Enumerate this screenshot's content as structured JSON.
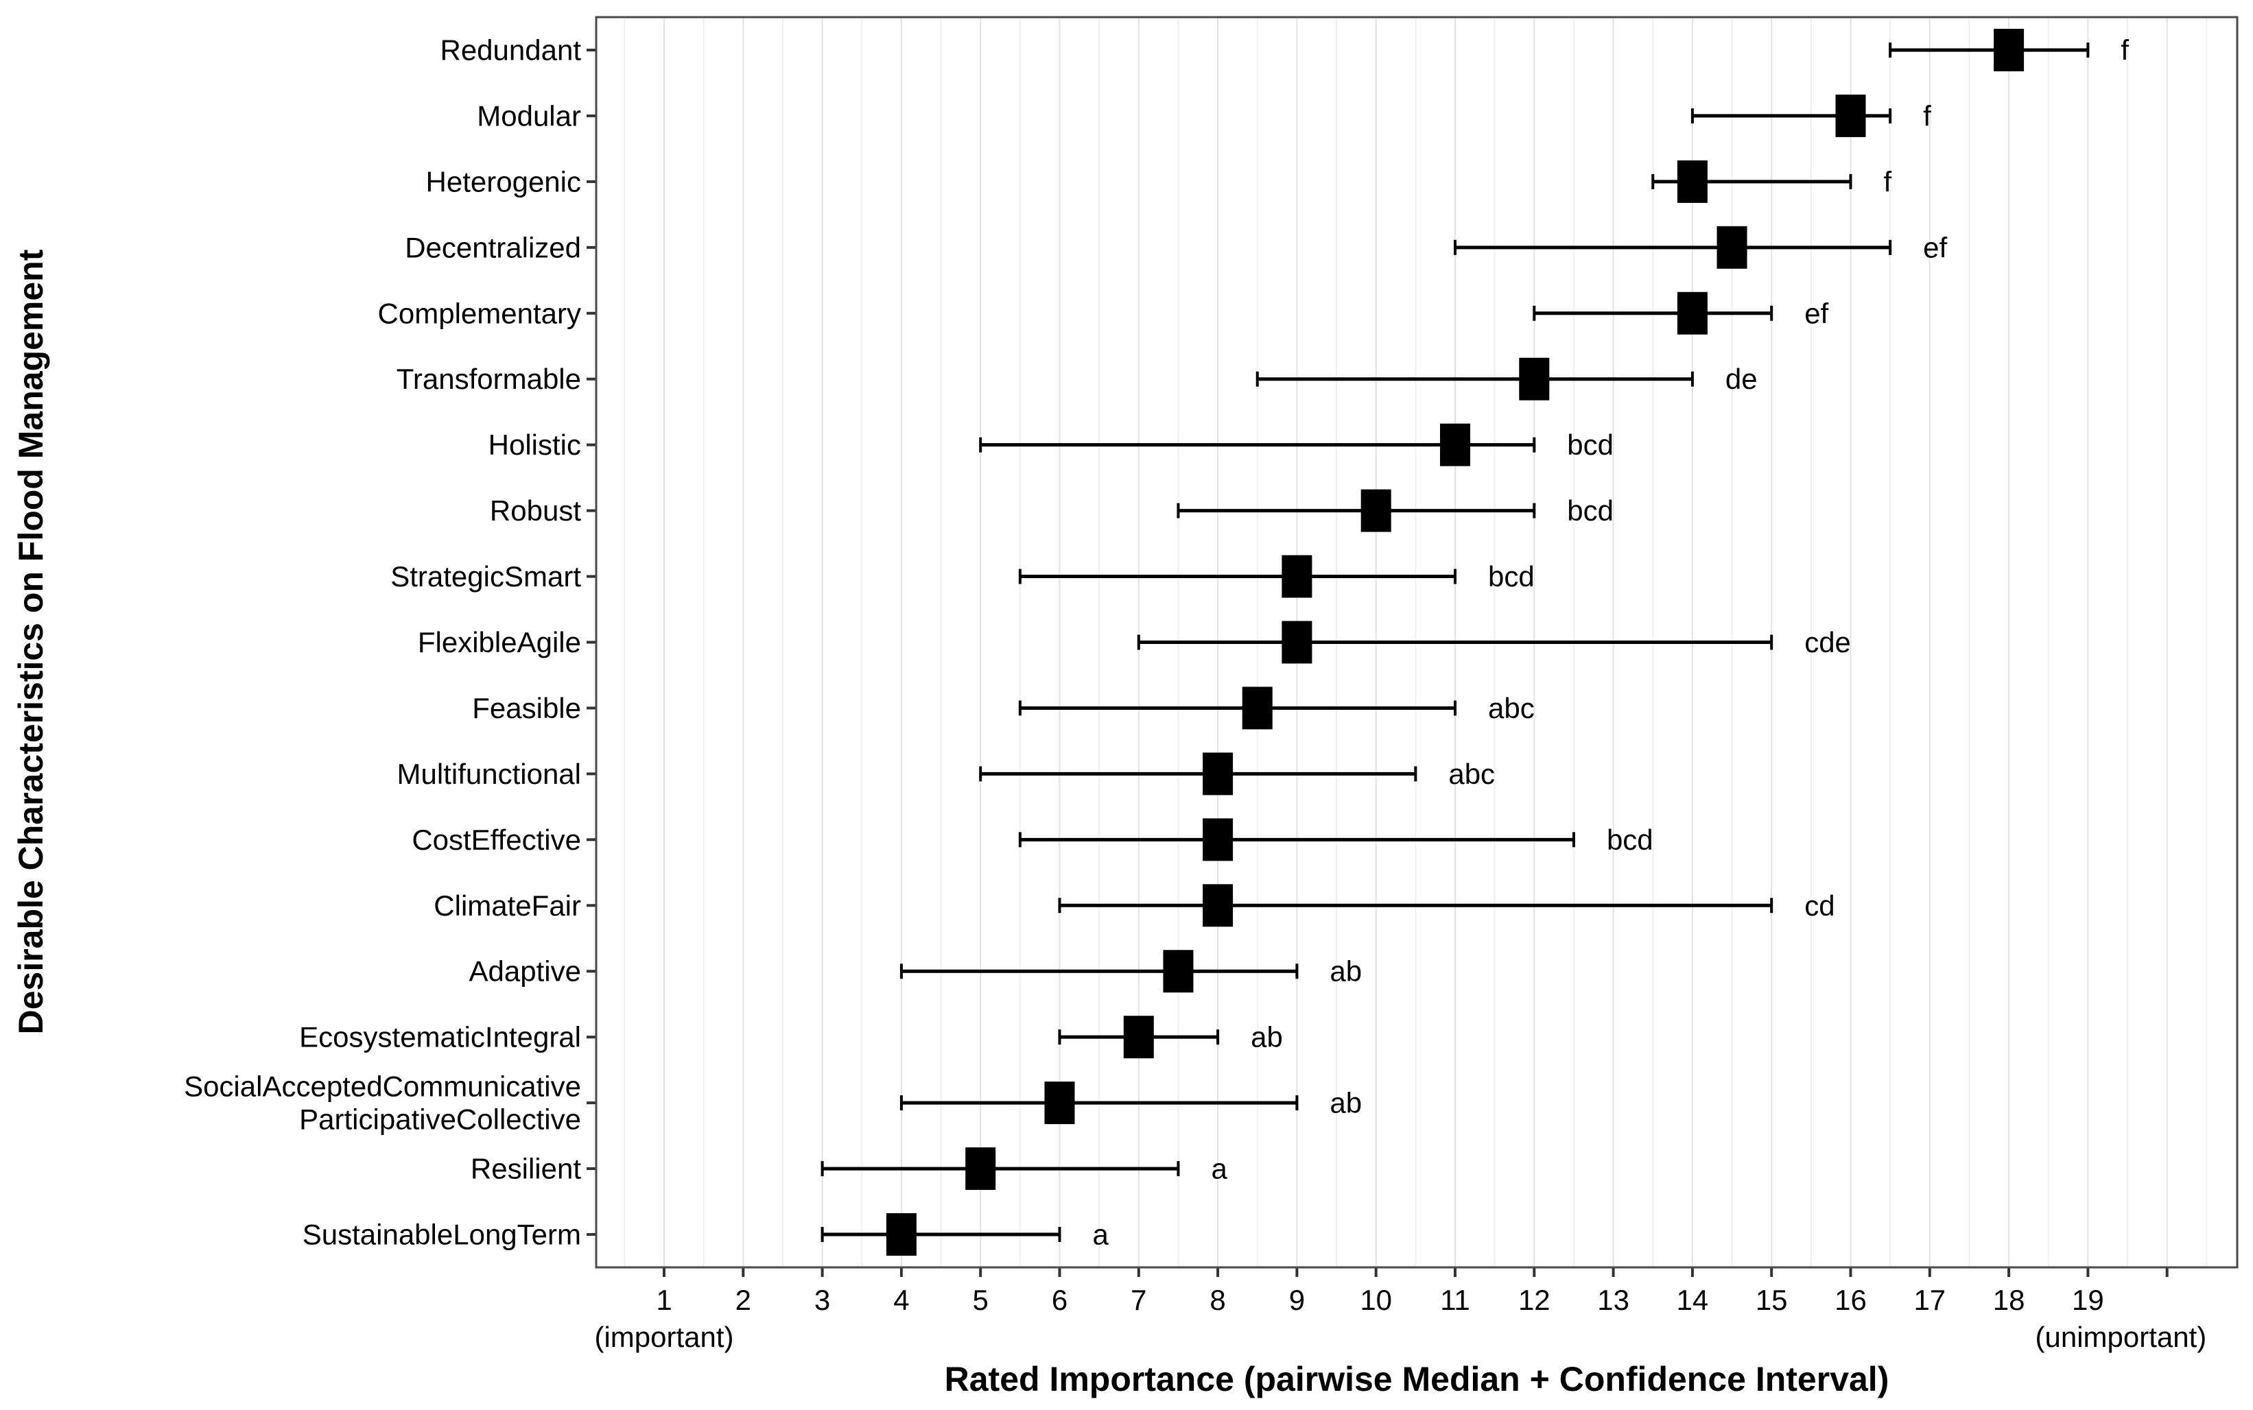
{
  "chart_data": {
    "type": "scatter",
    "subtype": "dot-plot-with-error-bars",
    "marker": "square",
    "title": "",
    "xlabel": "Rated Importance (pairwise Median + Confidence Interval)",
    "ylabel": "Desirable Characteristics on Flood Management",
    "x_axis": {
      "ticks": [
        1,
        2,
        3,
        4,
        5,
        6,
        7,
        8,
        9,
        10,
        11,
        12,
        13,
        14,
        15,
        16,
        17,
        18,
        19
      ],
      "extra_unlabeled_tick": 20,
      "low_end_note": "(important)",
      "high_end_note": "(unimportant)",
      "xlim": [
        0.1,
        20.9
      ]
    },
    "grid": {
      "major": "on",
      "minor": "on",
      "major_color": "#e2e2e2",
      "minor_color": "#f0f0f0"
    },
    "legend": "none",
    "colors": {
      "point": "#000000",
      "error_bar": "#000000",
      "text": "#000000",
      "panel_border": "#4a4a4a",
      "background": "#ffffff"
    },
    "rows": [
      {
        "label_lines": [
          "Redundant"
        ],
        "median": 18,
        "ci_low": 16.5,
        "ci_high": 19,
        "group": "f"
      },
      {
        "label_lines": [
          "Modular"
        ],
        "median": 16,
        "ci_low": 14,
        "ci_high": 16.5,
        "group": "f"
      },
      {
        "label_lines": [
          "Heterogenic"
        ],
        "median": 14,
        "ci_low": 13.5,
        "ci_high": 16,
        "group": "f"
      },
      {
        "label_lines": [
          "Decentralized"
        ],
        "median": 14.5,
        "ci_low": 11,
        "ci_high": 16.5,
        "group": "ef"
      },
      {
        "label_lines": [
          "Complementary"
        ],
        "median": 14,
        "ci_low": 12,
        "ci_high": 15,
        "group": "ef"
      },
      {
        "label_lines": [
          "Transformable"
        ],
        "median": 12,
        "ci_low": 8.5,
        "ci_high": 14,
        "group": "de"
      },
      {
        "label_lines": [
          "Holistic"
        ],
        "median": 11,
        "ci_low": 5,
        "ci_high": 12,
        "group": "bcd"
      },
      {
        "label_lines": [
          "Robust"
        ],
        "median": 10,
        "ci_low": 7.5,
        "ci_high": 12,
        "group": "bcd"
      },
      {
        "label_lines": [
          "StrategicSmart"
        ],
        "median": 9,
        "ci_low": 5.5,
        "ci_high": 11,
        "group": "bcd"
      },
      {
        "label_lines": [
          "FlexibleAgile"
        ],
        "median": 9,
        "ci_low": 7,
        "ci_high": 15,
        "group": "cde"
      },
      {
        "label_lines": [
          "Feasible"
        ],
        "median": 8.5,
        "ci_low": 5.5,
        "ci_high": 11,
        "group": "abc"
      },
      {
        "label_lines": [
          "Multifunctional"
        ],
        "median": 8,
        "ci_low": 5,
        "ci_high": 10.5,
        "group": "abc"
      },
      {
        "label_lines": [
          "CostEffective"
        ],
        "median": 8,
        "ci_low": 5.5,
        "ci_high": 12.5,
        "group": "bcd"
      },
      {
        "label_lines": [
          "ClimateFair"
        ],
        "median": 8,
        "ci_low": 6,
        "ci_high": 15,
        "group": "cd"
      },
      {
        "label_lines": [
          "Adaptive"
        ],
        "median": 7.5,
        "ci_low": 4,
        "ci_high": 9,
        "group": "ab"
      },
      {
        "label_lines": [
          "EcosystematicIntegral"
        ],
        "median": 7,
        "ci_low": 6,
        "ci_high": 8,
        "group": "ab"
      },
      {
        "label_lines": [
          "SocialAcceptedCommunicative",
          "ParticipativeCollective"
        ],
        "median": 6,
        "ci_low": 4,
        "ci_high": 9,
        "group": "ab"
      },
      {
        "label_lines": [
          "Resilient"
        ],
        "median": 5,
        "ci_low": 3,
        "ci_high": 7.5,
        "group": "a"
      },
      {
        "label_lines": [
          "SustainableLongTerm"
        ],
        "median": 4,
        "ci_low": 3,
        "ci_high": 6,
        "group": "a"
      }
    ]
  }
}
